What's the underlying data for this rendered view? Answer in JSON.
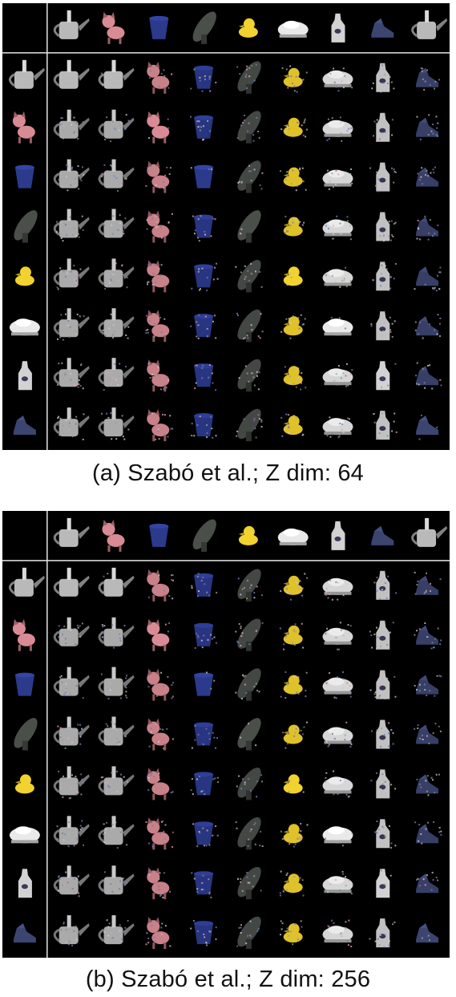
{
  "figure": {
    "panels": [
      {
        "id": "a",
        "caption": "(a) Szabó et al.; Z dim: 64",
        "grid_rows": 9,
        "grid_cols": 10,
        "variant": 0
      },
      {
        "id": "b",
        "caption": "(b) Szabó et al.; Z dim: 256",
        "grid_rows": 9,
        "grid_cols": 10,
        "variant": 1
      }
    ],
    "objects": [
      {
        "icon": "watering-can-icon",
        "color": "#b9b9b9"
      },
      {
        "icon": "pink-cat-icon",
        "color": "#d98b95"
      },
      {
        "icon": "blue-cup-icon",
        "color": "#2c3a8c"
      },
      {
        "icon": "dark-shoe-icon",
        "color": "#4a4f4a"
      },
      {
        "icon": "yellow-duck-icon",
        "color": "#f2d22e"
      },
      {
        "icon": "white-car-icon",
        "color": "#e9e9e9"
      },
      {
        "icon": "white-bottle-icon",
        "color": "#d2d2d2"
      },
      {
        "icon": "blue-shoe-icon",
        "color": "#3c4570"
      }
    ]
  }
}
